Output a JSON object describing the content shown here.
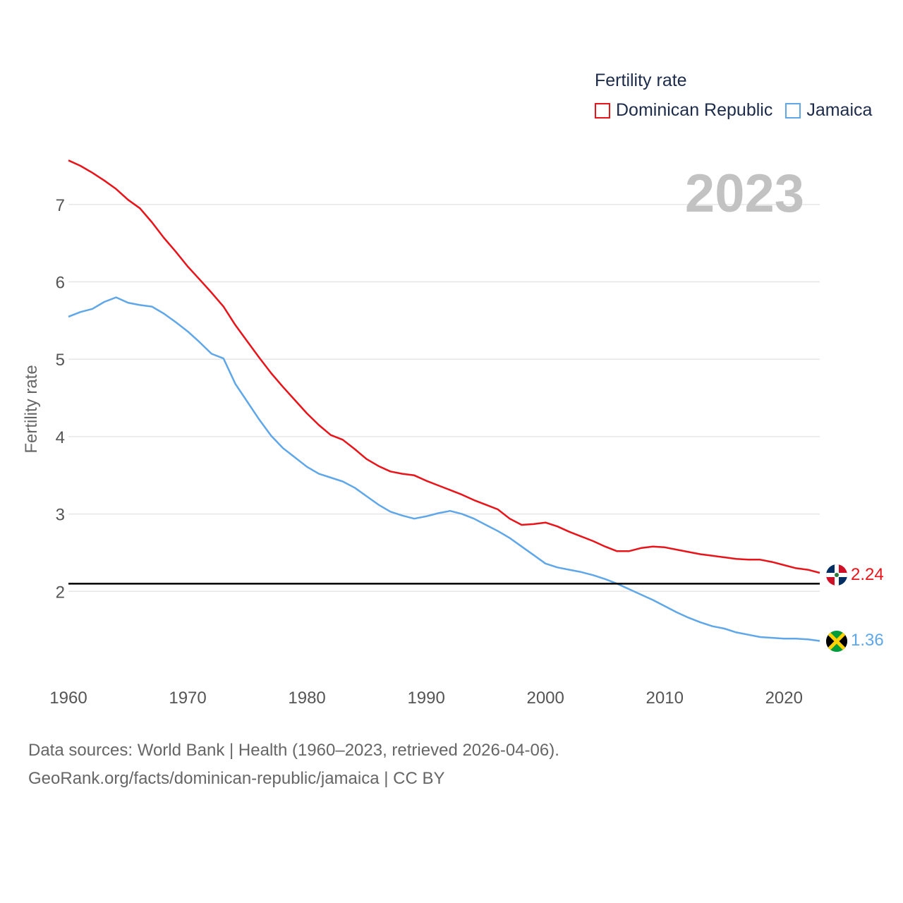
{
  "legend": {
    "title": "Fertility rate",
    "items": [
      {
        "label": "Dominican Republic",
        "color": "#e8141a"
      },
      {
        "label": "Jamaica",
        "color": "#5fa7e8"
      }
    ]
  },
  "year_watermark": "2023",
  "end_labels": {
    "dominican_republic": "2.24",
    "jamaica": "1.36"
  },
  "flags": {
    "dominican_republic": "dominican-republic-flag-icon",
    "jamaica": "jamaica-flag-icon"
  },
  "source": {
    "line1": "Data sources: World Bank | Health (1960–2023, retrieved 2026-04-06).",
    "line2": "GeoRank.org/facts/dominican-republic/jamaica | CC BY"
  },
  "chart_data": {
    "type": "line",
    "title": "Fertility rate",
    "xlabel": "",
    "ylabel": "Fertility rate",
    "xlim": [
      1960,
      2023
    ],
    "ylim": [
      1.0,
      7.6
    ],
    "x_ticks": [
      1960,
      1970,
      1980,
      1990,
      2000,
      2010,
      2020
    ],
    "y_ticks": [
      2,
      3,
      4,
      5,
      6,
      7
    ],
    "reference_line": 2.1,
    "grid": true,
    "x": [
      1960,
      1961,
      1962,
      1963,
      1964,
      1965,
      1966,
      1967,
      1968,
      1969,
      1970,
      1971,
      1972,
      1973,
      1974,
      1975,
      1976,
      1977,
      1978,
      1979,
      1980,
      1981,
      1982,
      1983,
      1984,
      1985,
      1986,
      1987,
      1988,
      1989,
      1990,
      1991,
      1992,
      1993,
      1994,
      1995,
      1996,
      1997,
      1998,
      1999,
      2000,
      2001,
      2002,
      2003,
      2004,
      2005,
      2006,
      2007,
      2008,
      2009,
      2010,
      2011,
      2012,
      2013,
      2014,
      2015,
      2016,
      2017,
      2018,
      2019,
      2020,
      2021,
      2022,
      2023
    ],
    "series": [
      {
        "name": "Dominican Republic",
        "color": "#e8141a",
        "values": [
          7.57,
          7.5,
          7.41,
          7.31,
          7.2,
          7.06,
          6.95,
          6.77,
          6.57,
          6.39,
          6.2,
          6.03,
          5.86,
          5.68,
          5.44,
          5.23,
          5.02,
          4.82,
          4.64,
          4.47,
          4.3,
          4.15,
          4.02,
          3.96,
          3.84,
          3.71,
          3.62,
          3.55,
          3.52,
          3.5,
          3.43,
          3.37,
          3.31,
          3.25,
          3.18,
          3.12,
          3.06,
          2.94,
          2.86,
          2.87,
          2.89,
          2.84,
          2.77,
          2.71,
          2.65,
          2.58,
          2.52,
          2.52,
          2.56,
          2.58,
          2.57,
          2.54,
          2.51,
          2.48,
          2.46,
          2.44,
          2.42,
          2.41,
          2.41,
          2.38,
          2.34,
          2.3,
          2.28,
          2.24
        ]
      },
      {
        "name": "Jamaica",
        "color": "#5fa7e8",
        "values": [
          5.55,
          5.61,
          5.65,
          5.74,
          5.8,
          5.73,
          5.7,
          5.68,
          5.59,
          5.48,
          5.36,
          5.22,
          5.07,
          5.01,
          4.68,
          4.45,
          4.22,
          4.01,
          3.85,
          3.73,
          3.61,
          3.52,
          3.47,
          3.42,
          3.34,
          3.23,
          3.12,
          3.03,
          2.98,
          2.94,
          2.97,
          3.01,
          3.04,
          3.0,
          2.94,
          2.86,
          2.78,
          2.69,
          2.58,
          2.47,
          2.36,
          2.31,
          2.28,
          2.25,
          2.21,
          2.16,
          2.1,
          2.03,
          1.96,
          1.89,
          1.81,
          1.73,
          1.66,
          1.6,
          1.55,
          1.52,
          1.47,
          1.44,
          1.41,
          1.4,
          1.39,
          1.39,
          1.38,
          1.36
        ]
      }
    ]
  }
}
